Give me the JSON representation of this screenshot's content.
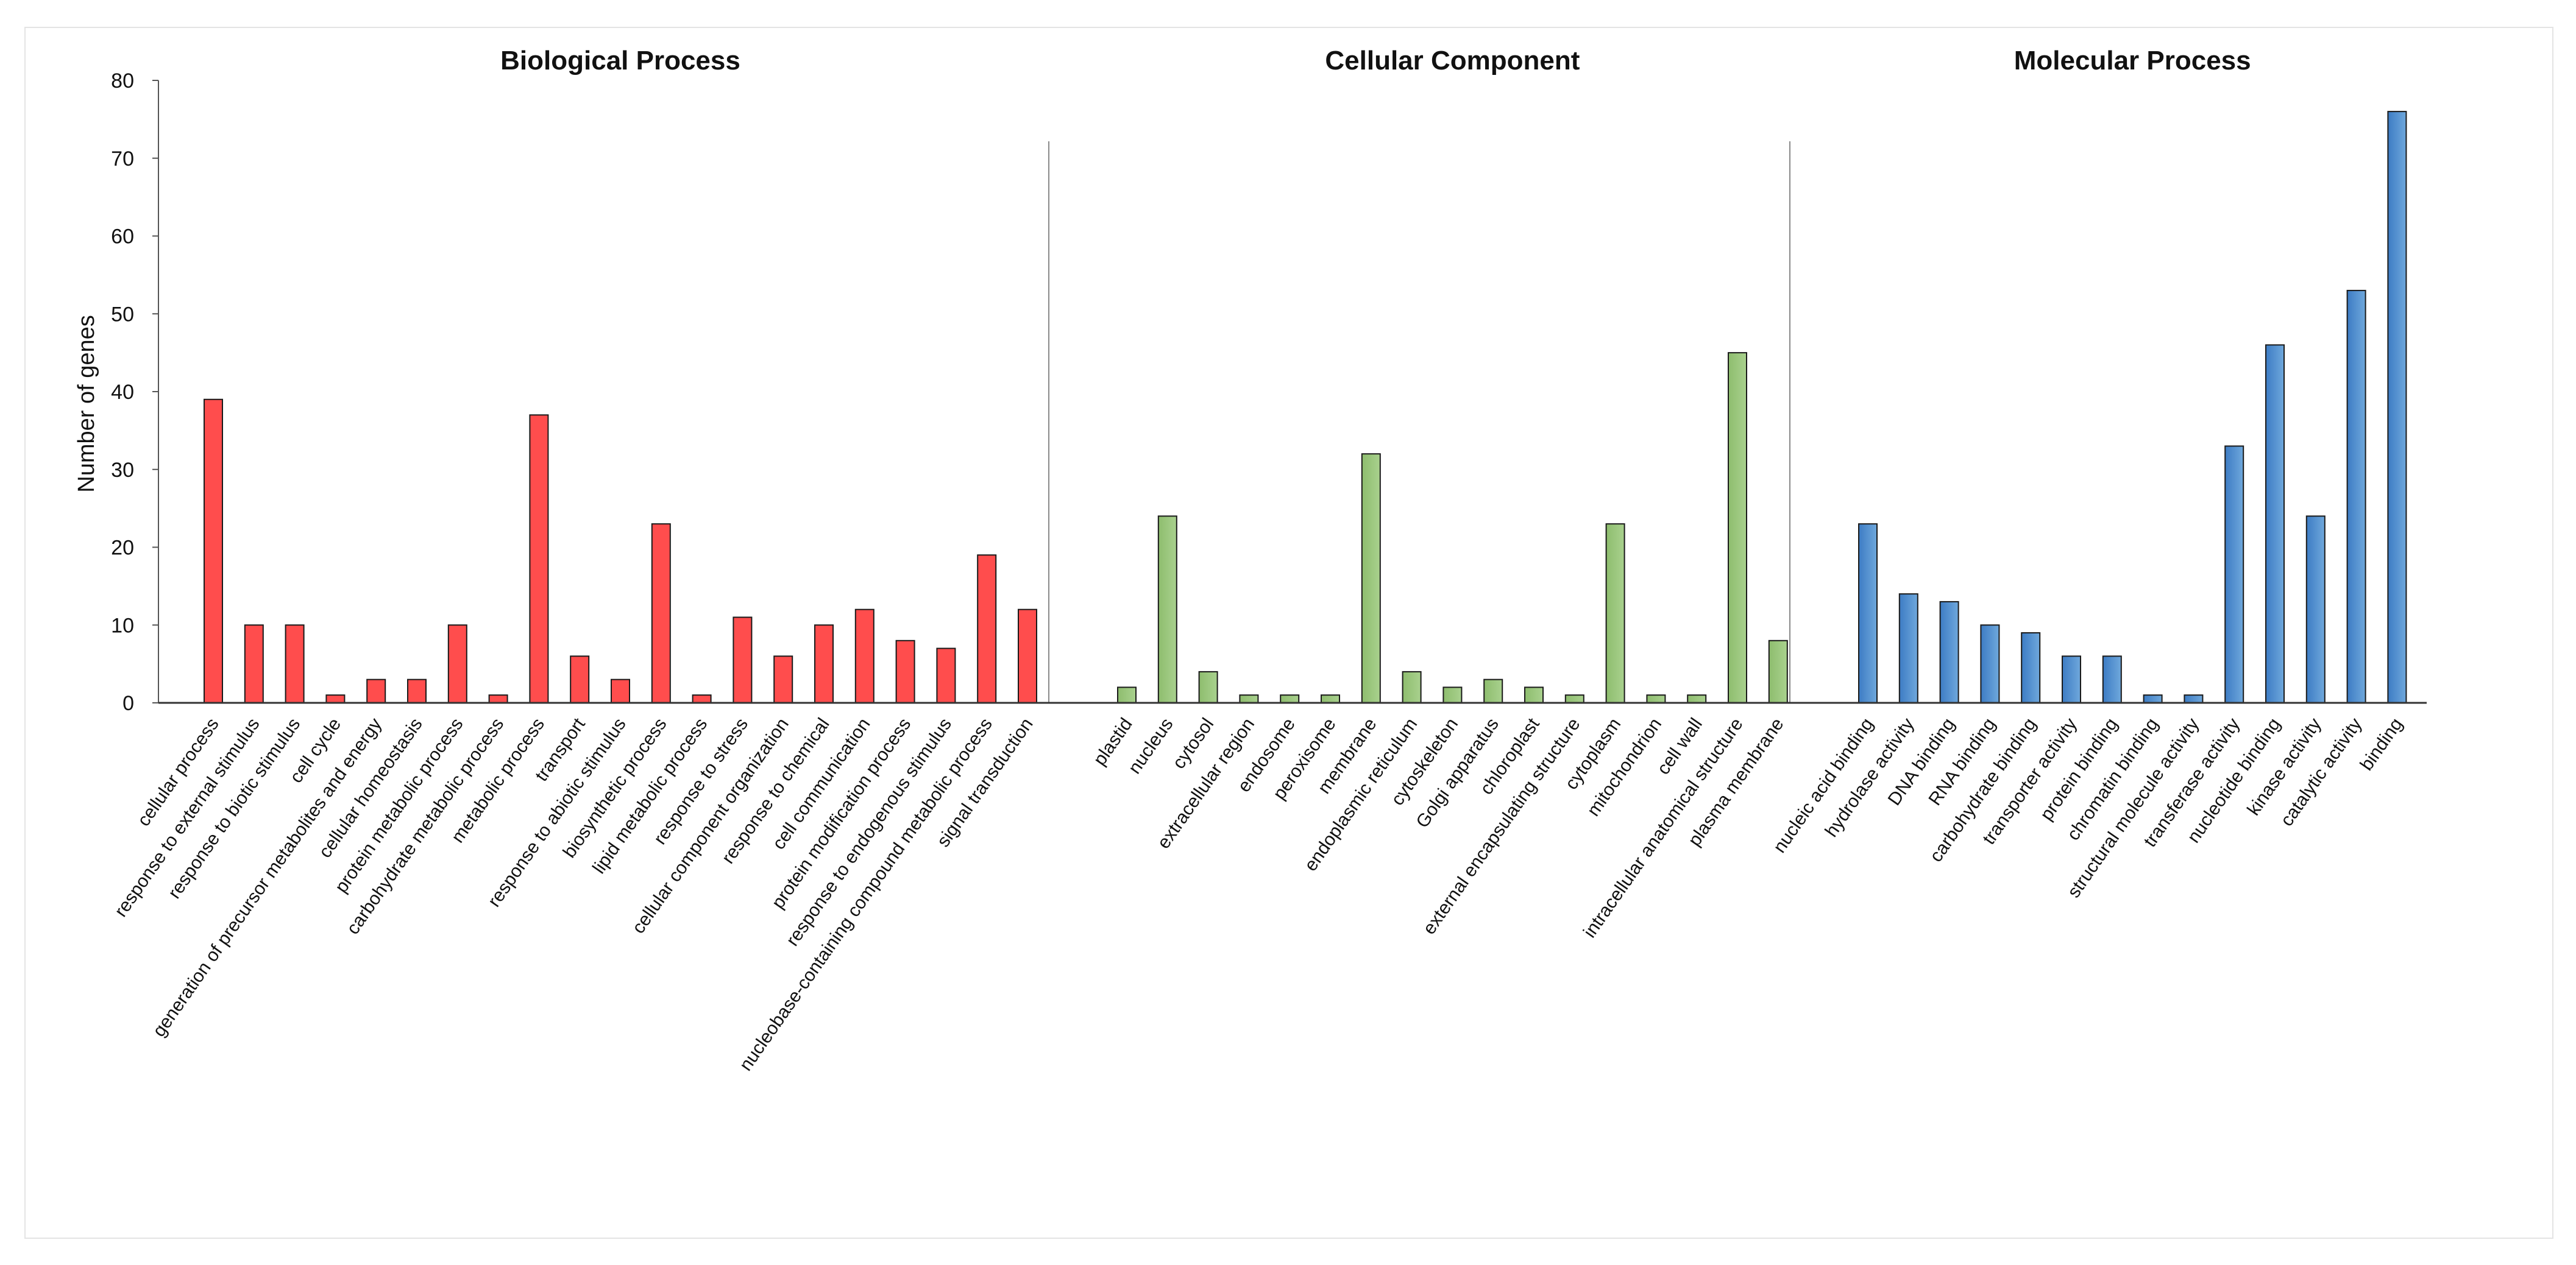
{
  "chart_data": {
    "type": "bar",
    "ylabel": "Number of genes",
    "ylim": [
      0,
      80
    ],
    "yticks": [
      0,
      10,
      20,
      30,
      40,
      50,
      60,
      70,
      80
    ],
    "legend": "none",
    "grid": false,
    "panels": [
      {
        "id": "bp",
        "title": "Biological Process",
        "color": "#ff4d4d",
        "gradient_dark": "#ff4d4d",
        "categories": [
          "cellular process",
          "response to external stimulus",
          "response to biotic stimulus",
          "cell cycle",
          "generation of precursor metabolites and energy",
          "cellular homeostasis",
          "protein metabolic process",
          "carbohydrate metabolic process",
          "metabolic process",
          "transport",
          "response to abiotic stimulus",
          "biosynthetic process",
          "lipid metabolic process",
          "response to stress",
          "cellular component organization",
          "response to chemical",
          "cell communication",
          "protein modification process",
          "response to endogenous stimulus",
          "nucleobase-containing compound metabolic process",
          "signal transduction"
        ],
        "values": [
          39,
          10,
          10,
          1,
          3,
          3,
          10,
          1,
          37,
          6,
          3,
          23,
          1,
          11,
          6,
          10,
          12,
          8,
          7,
          19,
          12
        ]
      },
      {
        "id": "cc",
        "title": "Cellular Component",
        "color": "#a9d18e",
        "gradient_dark": "#8ebd6e",
        "categories": [
          "plastid",
          "nucleus",
          "cytosol",
          "extracellular region",
          "endosome",
          "peroxisome",
          "membrane",
          "endoplasmic reticulum",
          "cytoskeleton",
          "Golgi apparatus",
          "chloroplast",
          "external encapsulating structure",
          "cytoplasm",
          "mitochondrion",
          "cell wall",
          "intracellular anatomical structure",
          "plasma membrane"
        ],
        "values": [
          2,
          24,
          4,
          1,
          1,
          1,
          32,
          4,
          2,
          3,
          2,
          1,
          23,
          1,
          1,
          45,
          8
        ]
      },
      {
        "id": "mp",
        "title": "Molecular Process",
        "color": "#6fa8dc",
        "gradient_dark": "#3d7cc4",
        "categories": [
          "nucleic acid binding",
          "hydrolase activity",
          "DNA binding",
          "RNA binding",
          "carbohydrate binding",
          "transporter activity",
          "protein binding",
          "chromatin binding",
          "structural molecule activity",
          "transferase activity",
          "nucleotide binding",
          "kinase activity",
          "catalytic activity",
          "binding"
        ],
        "values": [
          23,
          14,
          13,
          10,
          9,
          6,
          6,
          1,
          1,
          33,
          46,
          24,
          53,
          76
        ]
      }
    ]
  }
}
